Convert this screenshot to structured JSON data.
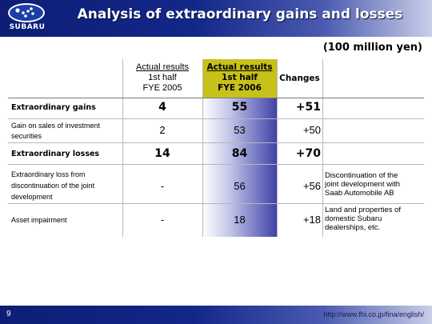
{
  "header": {
    "logo_text": "SUBARU",
    "title": "Analysis of extraordinary gains and losses"
  },
  "unit": "(100 million yen)",
  "table": {
    "columns": {
      "c1": [
        "Actual results",
        "1st half",
        "FYE 2005"
      ],
      "c2": [
        "Actual results",
        "1st half",
        "FYE 2006"
      ],
      "c3": "Changes"
    },
    "rows": [
      {
        "label": [
          "Extraordinary gains"
        ],
        "fye2005": "4",
        "fye2006": "55",
        "change": "+51",
        "note": []
      },
      {
        "label": [
          "Gain on sales of investment",
          "securities"
        ],
        "fye2005": "2",
        "fye2006": "53",
        "change": "+50",
        "note": []
      },
      {
        "label": [
          "Extraordinary losses"
        ],
        "fye2005": "14",
        "fye2006": "84",
        "change": "+70",
        "note": []
      },
      {
        "label": [
          "Extraordinary loss from",
          "discontinuation of the joint",
          "development"
        ],
        "fye2005": "-",
        "fye2006": "56",
        "change": "+56",
        "note": [
          "Discontinuation of the",
          "joint development with",
          "Saab Automobile AB"
        ]
      },
      {
        "label": [
          "Asset impairment"
        ],
        "fye2005": "-",
        "fye2006": "18",
        "change": "+18",
        "note": [
          "Land and properties of",
          "domestic Subaru",
          "dealerships, etc."
        ]
      }
    ]
  },
  "footer": {
    "page": "9",
    "url": "http://www.fhi.co.jp/fina/english/"
  },
  "colors": {
    "header_blue": "#13278a",
    "highlight_yellow": "#c7c11a",
    "highlight_blue": "#3f42a6"
  }
}
